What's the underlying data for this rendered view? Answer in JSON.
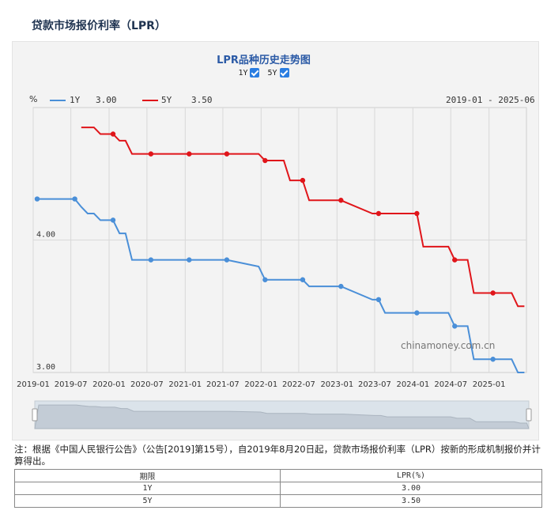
{
  "page_title": "贷款市场报价利率（LPR）",
  "chart_title": "LPR品种历史走势图",
  "toggles": [
    {
      "label": "1Y",
      "checked": true
    },
    {
      "label": "5Y",
      "checked": true
    }
  ],
  "legend": {
    "unit": "%",
    "items": [
      {
        "name": "1Y",
        "value": "3.00",
        "color": "#4a8fd8"
      },
      {
        "name": "5Y",
        "value": "3.50",
        "color": "#e0151a"
      }
    ],
    "range": "2019-01 - 2025-06"
  },
  "chart_data": {
    "type": "line",
    "y_tick_labels": [
      "4.00",
      "3.00"
    ],
    "ylim": [
      3.0,
      5.0
    ],
    "x_tick_labels": [
      "2019-01",
      "2019-07",
      "2020-01",
      "2020-07",
      "2021-01",
      "2021-07",
      "2022-01",
      "2022-07",
      "2023-01",
      "2023-07",
      "2024-01",
      "2024-07",
      "2025-01"
    ],
    "annotation": "chinamoney.com.cn",
    "series": [
      {
        "name": "1Y",
        "color": "#4a8fd8",
        "points": [
          [
            "2019-01-20",
            4.31
          ],
          [
            "2019-07-20",
            4.31
          ],
          [
            "2019-08-20",
            4.25
          ],
          [
            "2019-09-20",
            4.2
          ],
          [
            "2019-10-20",
            4.2
          ],
          [
            "2019-11-20",
            4.15
          ],
          [
            "2019-12-20",
            4.15
          ],
          [
            "2020-01-20",
            4.15
          ],
          [
            "2020-02-20",
            4.05
          ],
          [
            "2020-03-20",
            4.05
          ],
          [
            "2020-04-20",
            3.85
          ],
          [
            "2020-07-20",
            3.85
          ],
          [
            "2021-01-20",
            3.85
          ],
          [
            "2021-07-20",
            3.85
          ],
          [
            "2021-12-20",
            3.8
          ],
          [
            "2022-01-20",
            3.7
          ],
          [
            "2022-07-20",
            3.7
          ],
          [
            "2022-08-20",
            3.65
          ],
          [
            "2023-01-20",
            3.65
          ],
          [
            "2023-06-20",
            3.55
          ],
          [
            "2023-07-20",
            3.55
          ],
          [
            "2023-08-20",
            3.45
          ],
          [
            "2024-01-20",
            3.45
          ],
          [
            "2024-06-20",
            3.45
          ],
          [
            "2024-07-20",
            3.35
          ],
          [
            "2024-09-20",
            3.35
          ],
          [
            "2024-10-20",
            3.1
          ],
          [
            "2025-01-20",
            3.1
          ],
          [
            "2025-04-20",
            3.1
          ],
          [
            "2025-05-20",
            3.0
          ],
          [
            "2025-06-20",
            3.0
          ]
        ]
      },
      {
        "name": "5Y",
        "color": "#e0151a",
        "points": [
          [
            "2019-08-20",
            4.85
          ],
          [
            "2019-10-20",
            4.85
          ],
          [
            "2019-11-20",
            4.8
          ],
          [
            "2019-12-20",
            4.8
          ],
          [
            "2020-01-20",
            4.8
          ],
          [
            "2020-02-20",
            4.75
          ],
          [
            "2020-03-20",
            4.75
          ],
          [
            "2020-04-20",
            4.65
          ],
          [
            "2020-07-20",
            4.65
          ],
          [
            "2021-01-20",
            4.65
          ],
          [
            "2021-07-20",
            4.65
          ],
          [
            "2021-12-20",
            4.65
          ],
          [
            "2022-01-20",
            4.6
          ],
          [
            "2022-04-20",
            4.6
          ],
          [
            "2022-05-20",
            4.45
          ],
          [
            "2022-07-20",
            4.45
          ],
          [
            "2022-08-20",
            4.3
          ],
          [
            "2023-01-20",
            4.3
          ],
          [
            "2023-06-20",
            4.2
          ],
          [
            "2023-07-20",
            4.2
          ],
          [
            "2024-01-20",
            4.2
          ],
          [
            "2024-02-20",
            3.95
          ],
          [
            "2024-06-20",
            3.95
          ],
          [
            "2024-07-20",
            3.85
          ],
          [
            "2024-09-20",
            3.85
          ],
          [
            "2024-10-20",
            3.6
          ],
          [
            "2025-01-20",
            3.6
          ],
          [
            "2025-04-20",
            3.6
          ],
          [
            "2025-05-20",
            3.5
          ],
          [
            "2025-06-20",
            3.5
          ]
        ]
      }
    ]
  },
  "note": "注：根据《中国人民银行公告》（公告[2019]第15号），自2019年8月20日起，贷款市场报价利率（LPR）按新的形成机制报价并计算得出。",
  "table": {
    "headers": [
      "期限",
      "LPR(%)"
    ],
    "rows": [
      [
        "1Y",
        "3.00"
      ],
      [
        "5Y",
        "3.50"
      ]
    ]
  }
}
